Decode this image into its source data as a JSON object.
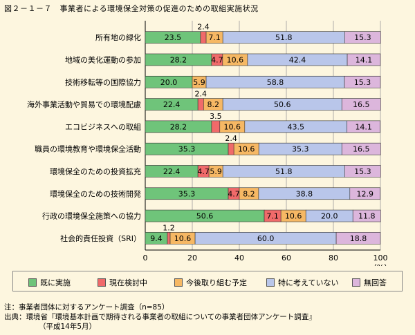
{
  "title": "図２－１－７　事業者による環境保全対策の促進のための取組実施状況",
  "chart_data": {
    "type": "bar",
    "orientation": "horizontal",
    "stacked": true,
    "categories": [
      "所有地の緑化",
      "地域の美化運動の参加",
      "技術移転等の国際協力",
      "海外事業活動や貿易での環境配慮",
      "エコビジネスへの取組",
      "職員の環境教育や環境保全活動",
      "環境保全のための投資拡充",
      "環境保全のための技術開発",
      "行政の環境保全施策への協力",
      "社会的責任投資（SRI）"
    ],
    "series": [
      {
        "name": "既に実施",
        "color": "#6fc47a",
        "values": [
          23.5,
          28.2,
          20.0,
          22.4,
          28.2,
          35.3,
          22.4,
          35.3,
          50.6,
          9.4
        ]
      },
      {
        "name": "現在検討中",
        "color": "#f06a6a",
        "values": [
          2.4,
          4.7,
          0,
          2.4,
          3.5,
          2.4,
          4.7,
          4.7,
          7.1,
          1.2
        ]
      },
      {
        "name": "今後取り組む予定",
        "color": "#f6b864",
        "values": [
          7.1,
          10.6,
          5.9,
          8.2,
          10.6,
          10.6,
          5.9,
          8.2,
          10.6,
          10.6
        ]
      },
      {
        "name": "特に考えていない",
        "color": "#b9c6ea",
        "values": [
          51.8,
          42.4,
          58.8,
          50.6,
          43.5,
          35.3,
          51.8,
          38.8,
          20.0,
          60.0
        ]
      },
      {
        "name": "無回答",
        "color": "#dcb6dc",
        "values": [
          15.3,
          14.1,
          15.3,
          16.5,
          14.1,
          16.5,
          15.3,
          12.9,
          11.8,
          18.8
        ]
      }
    ],
    "data_labels": [
      [
        "23.5",
        "2.4",
        "7.1",
        "51.8",
        "15.3"
      ],
      [
        "28.2",
        "4.7",
        "10.6",
        "42.4",
        "14.1"
      ],
      [
        "20.0",
        "",
        "5.9",
        "58.8",
        "15.3"
      ],
      [
        "22.4",
        "2.4",
        "8.2",
        "50.6",
        "16.5"
      ],
      [
        "28.2",
        "3.5",
        "10.6",
        "43.5",
        "14.1"
      ],
      [
        "35.3",
        "2.4",
        "10.6",
        "35.3",
        "16.5"
      ],
      [
        "22.4",
        "4.7",
        "5.9",
        "51.8",
        "15.3"
      ],
      [
        "35.3",
        "4.7",
        "8.2",
        "38.8",
        "12.9"
      ],
      [
        "50.6",
        "7.1",
        "10.6",
        "20.0",
        "11.8"
      ],
      [
        "9.4",
        "1.2",
        "10.6",
        "60.0",
        "18.8"
      ]
    ],
    "label_above": [
      [
        false,
        true,
        false,
        false,
        false
      ],
      [
        false,
        false,
        false,
        false,
        false
      ],
      [
        false,
        false,
        false,
        false,
        false
      ],
      [
        false,
        true,
        false,
        false,
        false
      ],
      [
        false,
        true,
        false,
        false,
        false
      ],
      [
        false,
        true,
        false,
        false,
        false
      ],
      [
        false,
        false,
        false,
        false,
        false
      ],
      [
        false,
        false,
        false,
        false,
        false
      ],
      [
        false,
        false,
        false,
        false,
        false
      ],
      [
        false,
        true,
        false,
        false,
        false
      ]
    ],
    "xlim": [
      0,
      100
    ],
    "xticks": [
      "0",
      "20",
      "40",
      "60",
      "80",
      "100"
    ],
    "xlabel": "（%）",
    "grid": true,
    "legend_position": "bottom"
  },
  "footnotes": {
    "note": "注：事業者団体に対するアンケート調査（n=85）",
    "source": "出典：環境省『環境基本計画で期待される事業者の取組についての事業者団体アンケート調査』",
    "source_date": "（平成14年5月）"
  }
}
